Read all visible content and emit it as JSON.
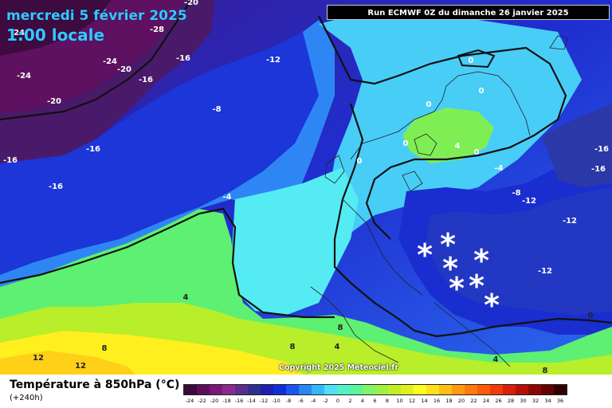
{
  "header": {
    "date_line": "mercredi 5 février 2025",
    "time_line": "1:00 locale",
    "run_info": "Run ECMWF 0Z du dimanche 26 janvier 2025"
  },
  "map": {
    "copyright": "Copyright 2025 Meteociel.fr",
    "contour_labels": [
      "-20",
      "-28",
      "-24",
      "-24",
      "-24",
      "-20",
      "-16",
      "-12",
      "-16",
      "-20",
      "-16",
      "-16",
      "-16",
      "-8",
      "-4",
      "0",
      "0",
      "0",
      "0",
      "0",
      "4",
      "0",
      "-4",
      "-8",
      "-12",
      "-12",
      "-12",
      "-16",
      "-16",
      "4",
      "8",
      "8",
      "8",
      "4",
      "12",
      "12",
      "4",
      "8",
      "0"
    ],
    "snow_symbol": "*",
    "snow_count": 7
  },
  "footer": {
    "title": "Température à 850hPa (°C)",
    "lead_time": "(+240h)"
  },
  "scale": {
    "labels": [
      "-24",
      "-22",
      "-20",
      "-18",
      "-16",
      "-14",
      "-12",
      "-10",
      "-8",
      "-6",
      "-4",
      "-2",
      "0",
      "2",
      "4",
      "6",
      "8",
      "10",
      "12",
      "14",
      "16",
      "18",
      "20",
      "22",
      "24",
      "26",
      "28",
      "30",
      "32",
      "34",
      "36"
    ],
    "colors": [
      "#3a0a3c",
      "#5b0f5b",
      "#7a1878",
      "#8a2a8e",
      "#5a2e8a",
      "#2f2f92",
      "#1f1fb0",
      "#0e2fd6",
      "#1a55f0",
      "#2a85f5",
      "#35b8fa",
      "#4fe0f5",
      "#53f0c8",
      "#5ef59a",
      "#7ef56a",
      "#9ef040",
      "#c0ee28",
      "#e0f020",
      "#ffff1e",
      "#ffe01a",
      "#ffbe14",
      "#ff9a10",
      "#ff7a0c",
      "#ff5a0a",
      "#f03a0a",
      "#d82008",
      "#b41006",
      "#8c0804",
      "#640402",
      "#300000"
    ]
  }
}
